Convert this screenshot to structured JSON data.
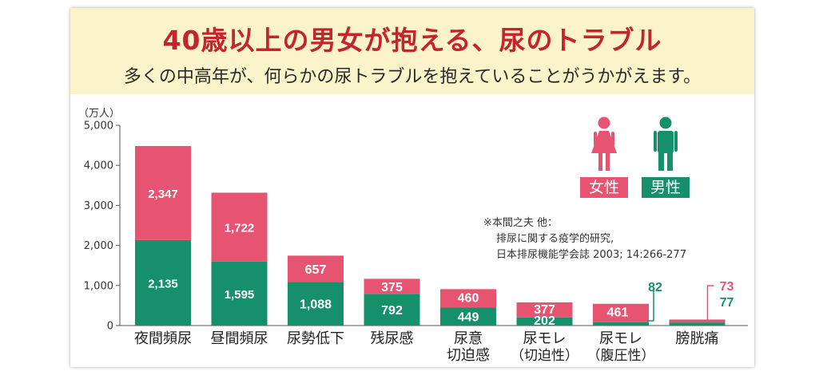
{
  "header": {
    "title": "40歳以上の男女が抱える、尿のトラブル",
    "subtitle": "多くの中高年が、何らかの尿トラブルを抱えていることがうかがえます。"
  },
  "legend": {
    "female_label": "女性",
    "male_label": "男性",
    "female_icon": "female-person-icon",
    "male_icon": "male-person-icon"
  },
  "source": {
    "line1": "※本間之夫 他：",
    "line2": "排尿に関する疫学的研究,",
    "line3": "日本排尿機能学会誌 2003; 14:266-277"
  },
  "colors": {
    "female": "#e75471",
    "male": "#16906a",
    "header_bg": "#fbf3c9",
    "title": "#c4242b"
  },
  "chart_data": {
    "type": "bar",
    "stacked": true,
    "unit_label": "（万人）",
    "ylim": [
      0,
      5000
    ],
    "yticks": [
      "0",
      "1,000",
      "2,000",
      "3,000",
      "4,000",
      "5,000"
    ],
    "categories": [
      [
        "夜間頻尿"
      ],
      [
        "昼間頻尿"
      ],
      [
        "尿勢低下"
      ],
      [
        "残尿感"
      ],
      [
        "尿意",
        "切迫感"
      ],
      [
        "尿モレ",
        "（切迫性）"
      ],
      [
        "尿モレ",
        "（腹圧性）"
      ],
      [
        "膀胱痛"
      ]
    ],
    "series": [
      {
        "name": "男性",
        "values": [
          2135,
          1595,
          1088,
          792,
          449,
          202,
          82,
          77
        ],
        "labels": [
          "2,135",
          "1,595",
          "1,088",
          "792",
          "449",
          "202",
          "82",
          "77"
        ]
      },
      {
        "name": "女性",
        "values": [
          2347,
          1722,
          657,
          375,
          460,
          377,
          461,
          73
        ],
        "labels": [
          "2,347",
          "1,722",
          "657",
          "375",
          "460",
          "377",
          "461",
          "73"
        ]
      }
    ],
    "grid": false
  }
}
